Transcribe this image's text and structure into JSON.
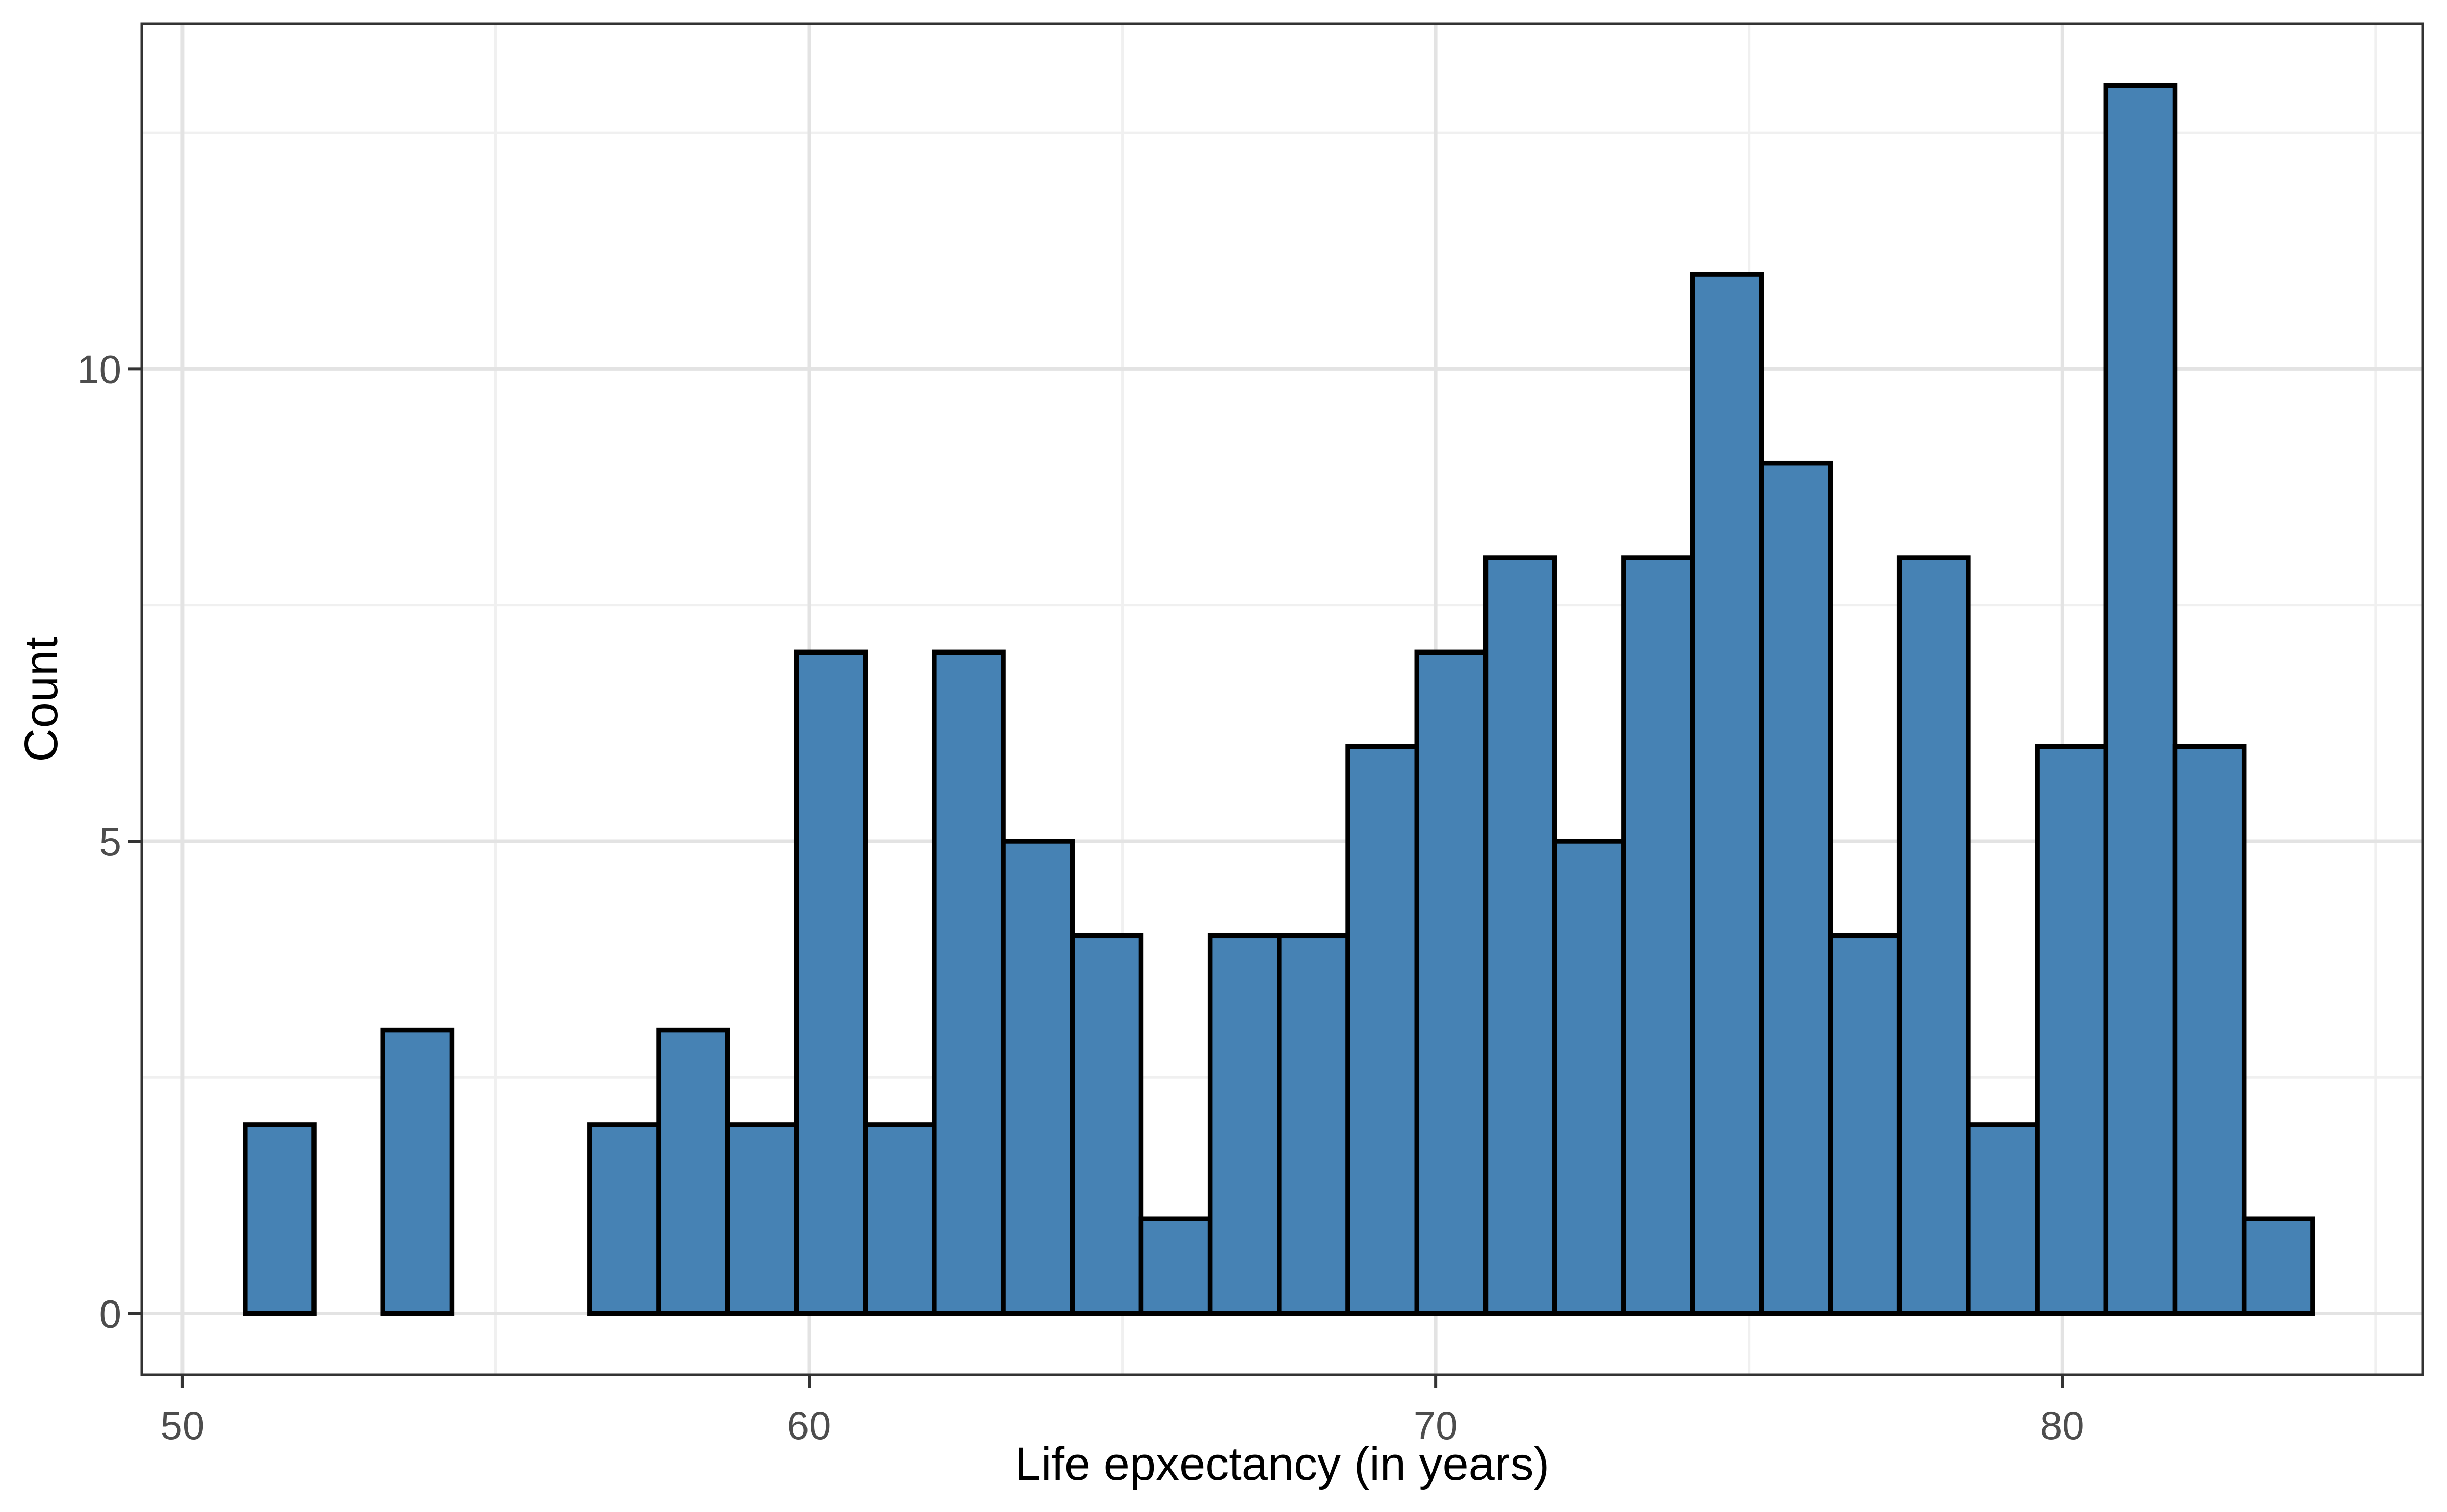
{
  "chart_data": {
    "type": "bar",
    "subtype": "histogram",
    "title": "",
    "xlabel": "Life epxectancy (in years)",
    "ylabel": "Count",
    "bin_start": 51.0,
    "bin_width": 1.1,
    "counts": [
      2,
      0,
      3,
      0,
      0,
      2,
      3,
      2,
      7,
      2,
      7,
      5,
      4,
      1,
      4,
      4,
      6,
      7,
      8,
      5,
      8,
      11,
      9,
      4,
      8,
      2,
      6,
      13,
      6,
      1
    ],
    "x_ticks": [
      50,
      60,
      70,
      80
    ],
    "x_tick_labels": [
      "50",
      "60",
      "70",
      "80"
    ],
    "y_ticks": [
      0,
      5,
      10
    ],
    "y_tick_labels": [
      "0",
      "5",
      "10"
    ],
    "x_minor_gridlines": [
      55,
      65,
      75,
      85
    ],
    "y_minor_gridlines": [
      2.5,
      7.5,
      12.5
    ],
    "xlim": [
      49.35,
      85.75
    ],
    "ylim": [
      -0.65,
      13.65
    ],
    "grid": "major+minor",
    "legend": "none"
  },
  "colors": {
    "background": "#FFFFFF",
    "bar_fill": "#4682B4",
    "bar_stroke": "#000000",
    "grid_major": "#E3E3E3",
    "grid_minor": "#F0F0F0",
    "panel_border": "#333333",
    "tick_mark": "#333333",
    "tick_label": "#4D4D4D",
    "axis_title": "#000000"
  }
}
